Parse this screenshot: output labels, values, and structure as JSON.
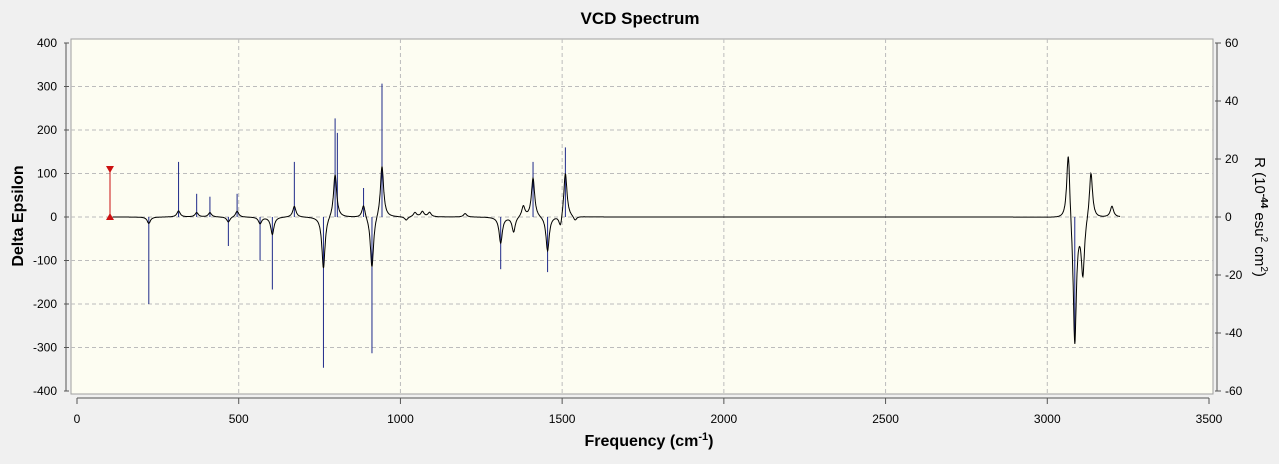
{
  "chart_data": {
    "type": "line",
    "title": "VCD Spectrum",
    "xlabel": "Frequency (cm",
    "xlabel_sup": "-1",
    "xlabel_end": ")",
    "ylabel": "Delta Epsilon",
    "y2label_parts": [
      "R (10",
      "-44",
      " esu",
      "2",
      " cm",
      "2",
      ")"
    ],
    "xlim": [
      0,
      3500
    ],
    "ylim": [
      -400,
      400
    ],
    "y2lim": [
      -60,
      60
    ],
    "xticks": [
      0,
      500,
      1000,
      1500,
      2000,
      2500,
      3000,
      3500
    ],
    "yticks": [
      400,
      300,
      200,
      100,
      0,
      -100,
      -200,
      -300,
      -400
    ],
    "y2ticks": [
      60,
      40,
      20,
      0,
      -20,
      -40,
      -60
    ],
    "grid": true,
    "colors": {
      "background": "#fdfdf2",
      "line": "#000000",
      "sticks": "#1f2a8a",
      "marker": "#cc1111",
      "grid": "#bcbcbc"
    },
    "spectrum_peaks": [
      {
        "x": 222,
        "y": -15
      },
      {
        "x": 314,
        "y": 14
      },
      {
        "x": 370,
        "y": 10
      },
      {
        "x": 411,
        "y": 10
      },
      {
        "x": 468,
        "y": -12
      },
      {
        "x": 495,
        "y": 14
      },
      {
        "x": 566,
        "y": -15
      },
      {
        "x": 604,
        "y": -40
      },
      {
        "x": 672,
        "y": 25
      },
      {
        "x": 762,
        "y": -120
      },
      {
        "x": 798,
        "y": 100
      },
      {
        "x": 886,
        "y": 30
      },
      {
        "x": 912,
        "y": -120
      },
      {
        "x": 943,
        "y": 120
      },
      {
        "x": 1018,
        "y": -8
      },
      {
        "x": 1045,
        "y": 10
      },
      {
        "x": 1068,
        "y": 12
      },
      {
        "x": 1090,
        "y": 10
      },
      {
        "x": 1200,
        "y": 8
      },
      {
        "x": 1310,
        "y": -60
      },
      {
        "x": 1350,
        "y": -35
      },
      {
        "x": 1380,
        "y": 25
      },
      {
        "x": 1410,
        "y": 90
      },
      {
        "x": 1455,
        "y": -80
      },
      {
        "x": 1495,
        "y": -30
      },
      {
        "x": 1510,
        "y": 105
      },
      {
        "x": 1540,
        "y": -10
      },
      {
        "x": 3065,
        "y": 165
      },
      {
        "x": 3085,
        "y": -300
      },
      {
        "x": 3110,
        "y": -130
      },
      {
        "x": 3135,
        "y": 110
      },
      {
        "x": 3200,
        "y": 25
      }
    ],
    "rotatory_strengths": [
      {
        "x": 102,
        "y": 16
      },
      {
        "x": 222,
        "y": -30
      },
      {
        "x": 314,
        "y": 19
      },
      {
        "x": 370,
        "y": 8
      },
      {
        "x": 411,
        "y": 7
      },
      {
        "x": 468,
        "y": -10
      },
      {
        "x": 495,
        "y": 8
      },
      {
        "x": 566,
        "y": -15
      },
      {
        "x": 604,
        "y": -25
      },
      {
        "x": 672,
        "y": 19
      },
      {
        "x": 762,
        "y": -52
      },
      {
        "x": 798,
        "y": 34
      },
      {
        "x": 805,
        "y": 29
      },
      {
        "x": 886,
        "y": 10
      },
      {
        "x": 912,
        "y": -47
      },
      {
        "x": 943,
        "y": 46
      },
      {
        "x": 1310,
        "y": -18
      },
      {
        "x": 1410,
        "y": 19
      },
      {
        "x": 1455,
        "y": -19
      },
      {
        "x": 1510,
        "y": 24
      },
      {
        "x": 3085,
        "y": -41
      }
    ],
    "marker_x": 102
  }
}
